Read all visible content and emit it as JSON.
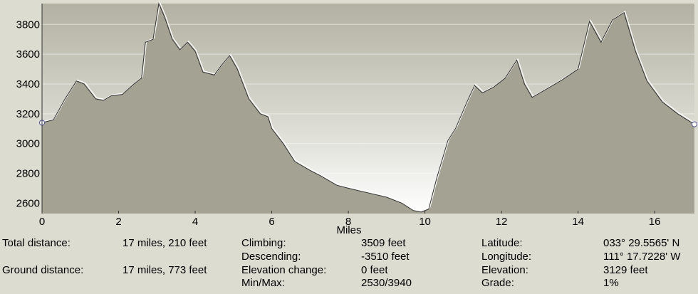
{
  "chart_data": {
    "type": "area",
    "color": "#a3a293",
    "xlabel": "Miles",
    "xlim": [
      0,
      17.04
    ],
    "ylim": [
      2530,
      3940
    ],
    "xticks": [
      0,
      2,
      4,
      6,
      8,
      10,
      12,
      14,
      16
    ],
    "yticks": [
      2600,
      2800,
      3000,
      3200,
      3400,
      3600,
      3800
    ],
    "grid": true,
    "x": [
      0,
      0.3,
      0.6,
      0.9,
      1.1,
      1.4,
      1.6,
      1.8,
      2.1,
      2.4,
      2.6,
      2.7,
      2.9,
      3.05,
      3.2,
      3.4,
      3.6,
      3.8,
      4.0,
      4.2,
      4.5,
      4.7,
      4.9,
      5.1,
      5.4,
      5.7,
      5.9,
      6.0,
      6.3,
      6.6,
      7.0,
      7.3,
      7.7,
      8.0,
      8.5,
      9.0,
      9.4,
      9.7,
      9.9,
      10.1,
      10.3,
      10.6,
      10.8,
      11.1,
      11.3,
      11.5,
      11.8,
      12.1,
      12.4,
      12.6,
      12.8,
      13.2,
      13.6,
      14.0,
      14.3,
      14.6,
      14.9,
      15.2,
      15.5,
      15.8,
      16.2,
      16.6,
      17.04
    ],
    "values": [
      3140,
      3160,
      3300,
      3420,
      3400,
      3300,
      3290,
      3320,
      3330,
      3400,
      3440,
      3680,
      3700,
      3940,
      3850,
      3700,
      3630,
      3680,
      3620,
      3480,
      3460,
      3530,
      3590,
      3500,
      3300,
      3200,
      3180,
      3100,
      3000,
      2880,
      2820,
      2780,
      2720,
      2700,
      2670,
      2640,
      2600,
      2550,
      2540,
      2560,
      2760,
      3020,
      3100,
      3280,
      3390,
      3340,
      3380,
      3440,
      3560,
      3400,
      3310,
      3370,
      3430,
      3500,
      3820,
      3680,
      3830,
      3880,
      3620,
      3420,
      3280,
      3200,
      3129
    ]
  },
  "stats": [
    {
      "label": "Total distance:",
      "value": "17 miles, 210 feet"
    },
    {
      "label": "Ground distance:",
      "value": "17 miles, 773 feet"
    },
    {
      "label": "Climbing:",
      "value": "3509 feet"
    },
    {
      "label": "Descending:",
      "value": "-3510 feet"
    },
    {
      "label": "Elevation change:",
      "value": "0 feet"
    },
    {
      "label": "Min/Max:",
      "value": "2530/3940"
    },
    {
      "label": "Latitude:",
      "value": "033° 29.5565' N"
    },
    {
      "label": "Longitude:",
      "value": "111° 17.7228' W"
    },
    {
      "label": "Elevation:",
      "value": "3129 feet"
    },
    {
      "label": "Grade:",
      "value": "1%"
    }
  ]
}
